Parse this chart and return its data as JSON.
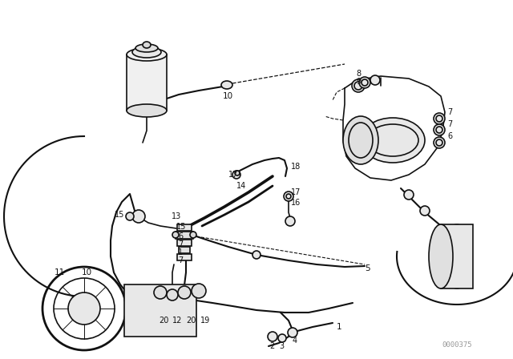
{
  "bg_color": "#ffffff",
  "line_color": "#111111",
  "watermark_text": "0000375",
  "watermark_color": "#999999",
  "figsize": [
    6.4,
    4.48
  ],
  "dpi": 100
}
